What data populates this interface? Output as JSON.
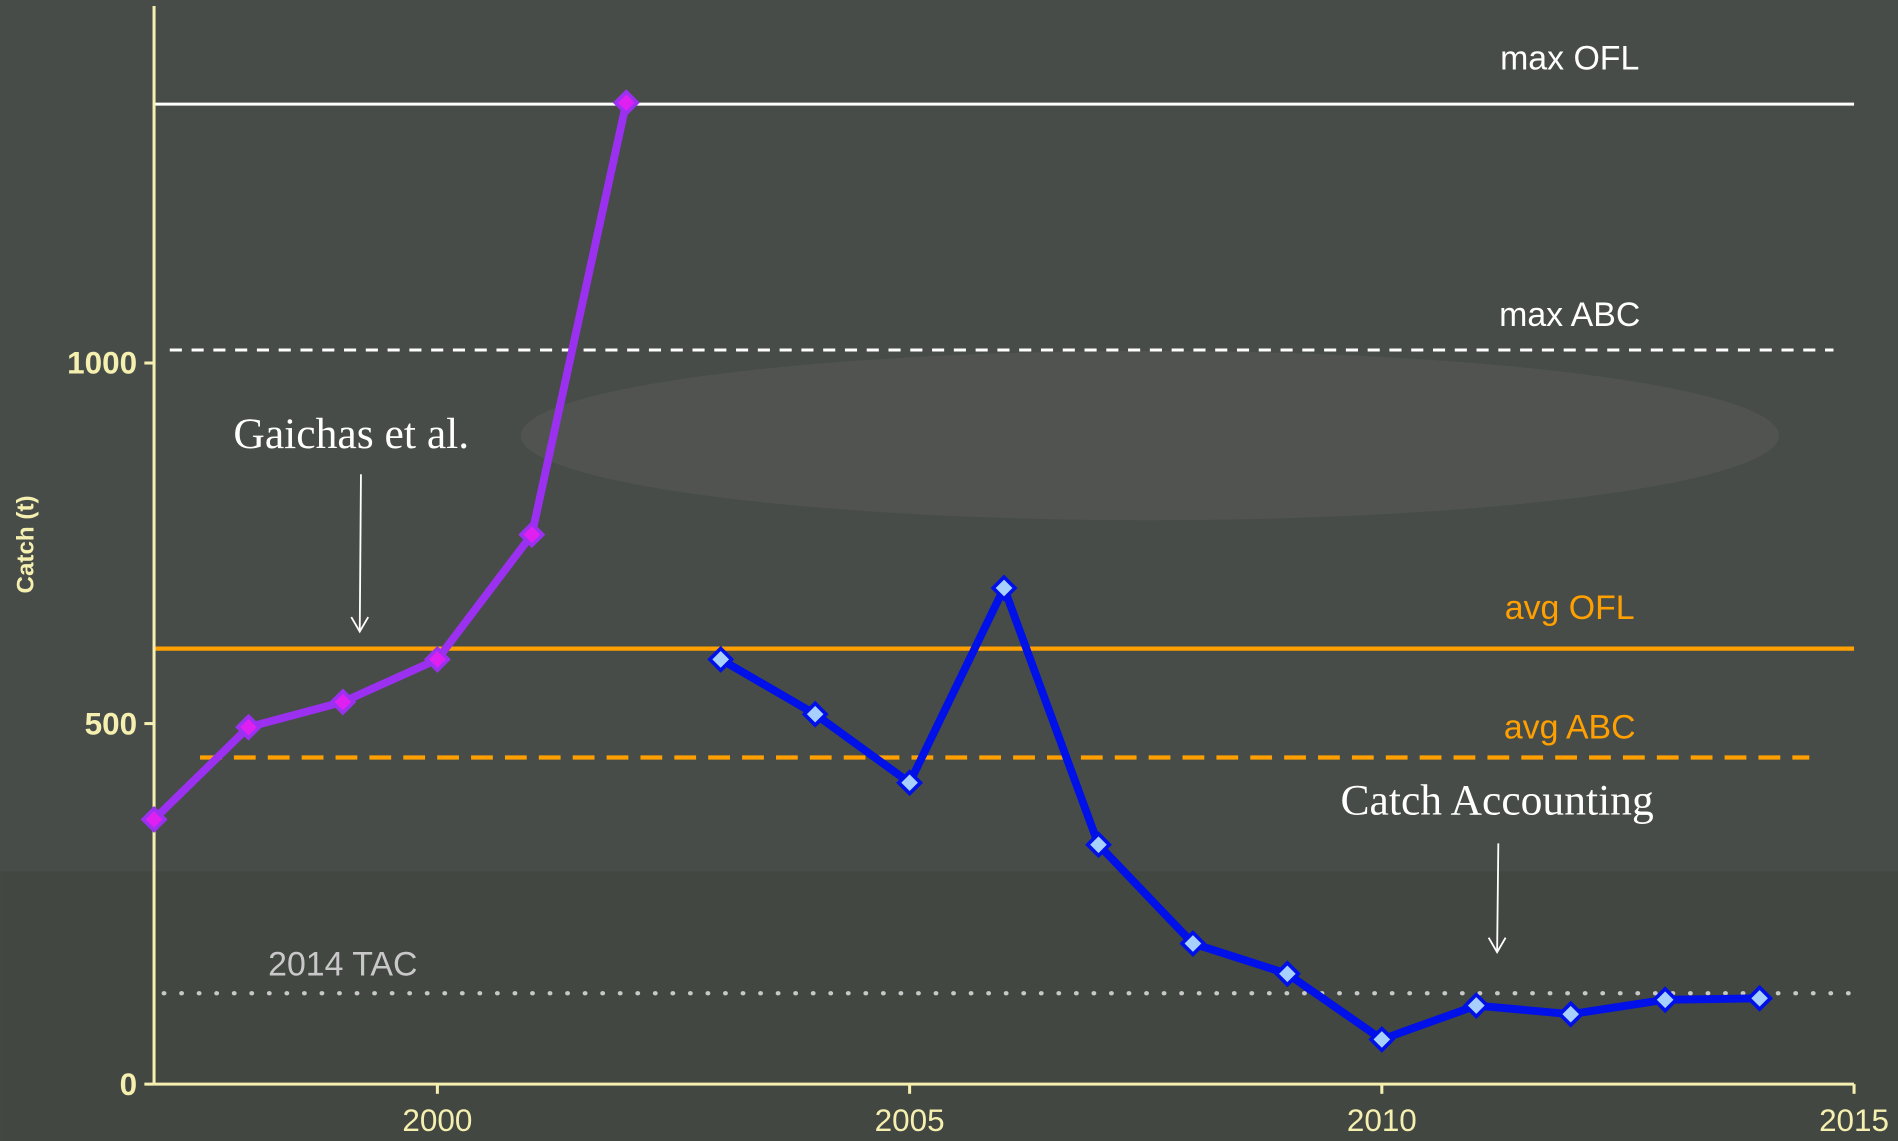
{
  "chart_data": {
    "type": "line",
    "y_label": "Catch (t)",
    "xlim": [
      1997,
      2015
    ],
    "ylim": [
      0,
      1495
    ],
    "xticks": [
      2000,
      2005,
      2010,
      2015
    ],
    "yticks": [
      0,
      500,
      1000
    ],
    "series": [
      {
        "color": "#9b30f0",
        "marker_color": "#e020f0",
        "x": [
          1997,
          1998,
          1999,
          2000,
          2001,
          2002
        ],
        "values": [
          367,
          495,
          530,
          589,
          762,
          1361
        ]
      },
      {
        "color": "#0010e8",
        "marker_color": "#a8d0ff",
        "x": [
          2003,
          2004,
          2005,
          2006,
          2007,
          2008,
          2009,
          2010,
          2011,
          2012,
          2013,
          2014
        ],
        "values": [
          589,
          513,
          418,
          688,
          332,
          195,
          153,
          62,
          109,
          97,
          117,
          119
        ]
      }
    ],
    "reference_lines": [
      {
        "label": "max OFL",
        "value": 1359,
        "color": "#ffffff",
        "style": "solid"
      },
      {
        "label": "max ABC",
        "value": 1018,
        "color": "#ffffff",
        "style": "dashed"
      },
      {
        "label": "avg OFL",
        "value": 604,
        "color": "#ffa000",
        "style": "solid"
      },
      {
        "label": "avg ABC",
        "value": 453,
        "color": "#ffa000",
        "style": "dashed"
      },
      {
        "label": "2014 TAC",
        "value": 126,
        "color": "#c8c8c8",
        "style": "dotted"
      }
    ],
    "annotations": [
      "Gaichas et al.",
      "Catch Accounting"
    ]
  }
}
